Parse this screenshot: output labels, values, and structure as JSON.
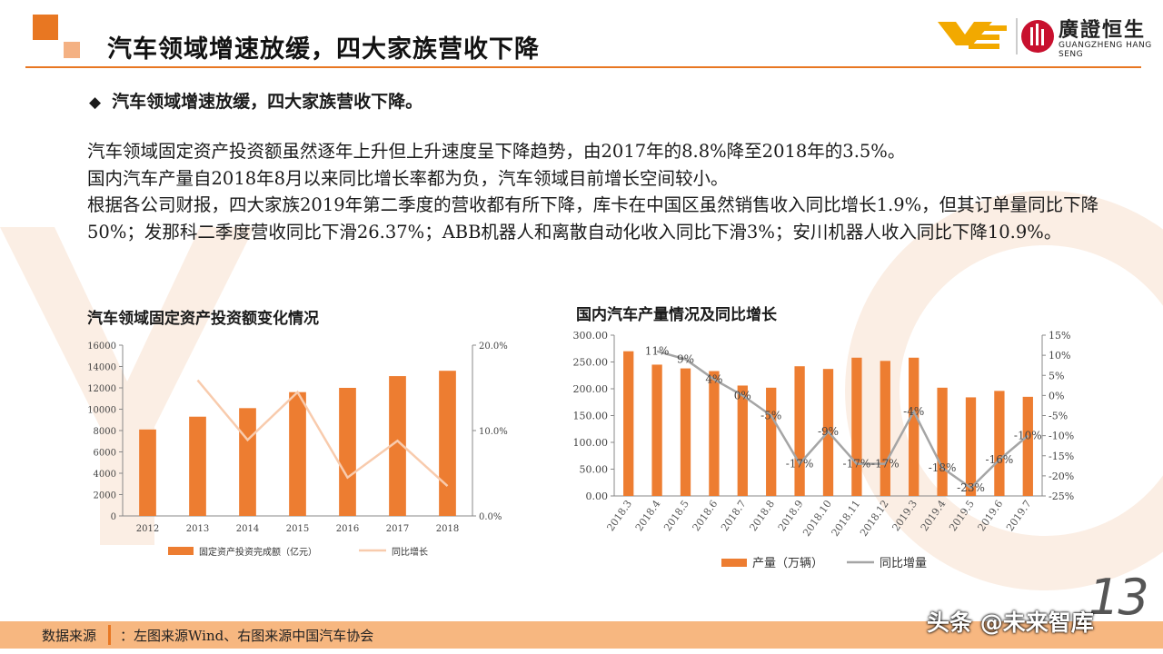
{
  "header": {
    "title": "汽车领域增速放缓，四大家族营收下降",
    "logo_cn": "廣證恒生",
    "logo_en": "GUANGZHENG HANG SENG"
  },
  "bullet": "汽车领域增速放缓，四大家族营收下降。",
  "body": [
    "汽车领域固定资产投资额虽然逐年上升但上升速度呈下降趋势，由2017年的8.8%降至2018年的3.5%。",
    "国内汽车产量自2018年8月以来同比增长率都为负，汽车领域目前增长空间较小。",
    "根据各公司财报，四大家族2019年第二季度的营收都有所下降，库卡在中国区虽然销售收入同比增长1.9%，但其订单量同比下降50%；发那科二季度营收同比下滑26.37%；ABB机器人和离散自动化收入同比下滑3%；安川机器人收入同比下降10.9%。"
  ],
  "footer": {
    "source_label": "数据来源",
    "source_text": "：左图来源Wind、右图来源中国汽车协会"
  },
  "page_number": "13",
  "credit": "头条 @未来智库",
  "colors": {
    "accent": "#e87722",
    "bar": "#ed7d31",
    "line_left": "#f8cbad",
    "line_right": "#a5a5a5",
    "footer": "#f7b780"
  },
  "chart_data": [
    {
      "type": "bar",
      "title": "汽车领域固定资产投资额变化情况",
      "categories": [
        "2012",
        "2013",
        "2014",
        "2015",
        "2016",
        "2017",
        "2018"
      ],
      "series": [
        {
          "name": "固定资产投资完成额（亿元）",
          "type": "bar",
          "axis": "left",
          "values": [
            8100,
            9300,
            10100,
            11600,
            12000,
            13100,
            13600
          ]
        },
        {
          "name": "同比增长",
          "type": "line",
          "axis": "right",
          "values": [
            null,
            15.9,
            8.9,
            14.5,
            4.5,
            8.8,
            3.5
          ]
        }
      ],
      "left_axis": {
        "ylim": [
          0,
          16000
        ],
        "ticks": [
          "0",
          "2000",
          "4000",
          "6000",
          "8000",
          "10000",
          "12000",
          "14000",
          "16000"
        ]
      },
      "right_axis": {
        "ylim": [
          0,
          20
        ],
        "ticks": [
          "0.0%",
          "10.0%",
          "20.0%"
        ]
      },
      "legend": "bottom"
    },
    {
      "type": "bar",
      "title": "国内汽车产量情况及同比增长",
      "categories": [
        "2018.3",
        "2018.4",
        "2018.5",
        "2018.6",
        "2018.7",
        "2018.8",
        "2018.9",
        "2018.10",
        "2018.11",
        "2018.12",
        "2019.3",
        "2019.4",
        "2019.5",
        "2019.6",
        "2019.7"
      ],
      "series": [
        {
          "name": "产量（万辆）",
          "type": "bar",
          "axis": "left",
          "values": [
            270,
            245,
            238,
            233,
            206,
            202,
            242,
            237,
            258,
            252,
            258,
            202,
            184,
            196,
            185
          ]
        },
        {
          "name": "同比增量",
          "type": "line",
          "axis": "right",
          "values": [
            null,
            11,
            9,
            4,
            0,
            -5,
            -17,
            -9,
            -17,
            -17,
            -4,
            -18,
            -23,
            -16,
            -10
          ],
          "labels": [
            "",
            "11%",
            "9%",
            "4%",
            "0%",
            "-5%",
            "-17%",
            "-9%",
            "-17%",
            "-17%",
            "-4%",
            "-18%",
            "-23%",
            "-16%",
            "-10%"
          ]
        }
      ],
      "left_axis": {
        "ylim": [
          0,
          300
        ],
        "ticks": [
          "0.00",
          "50.00",
          "100.00",
          "150.00",
          "200.00",
          "250.00",
          "300.00"
        ]
      },
      "right_axis": {
        "ylim": [
          -25,
          15
        ],
        "ticks": [
          "-25%",
          "-20%",
          "-15%",
          "-10%",
          "-5%",
          "0%",
          "5%",
          "10%",
          "15%"
        ]
      },
      "legend": "bottom"
    }
  ]
}
